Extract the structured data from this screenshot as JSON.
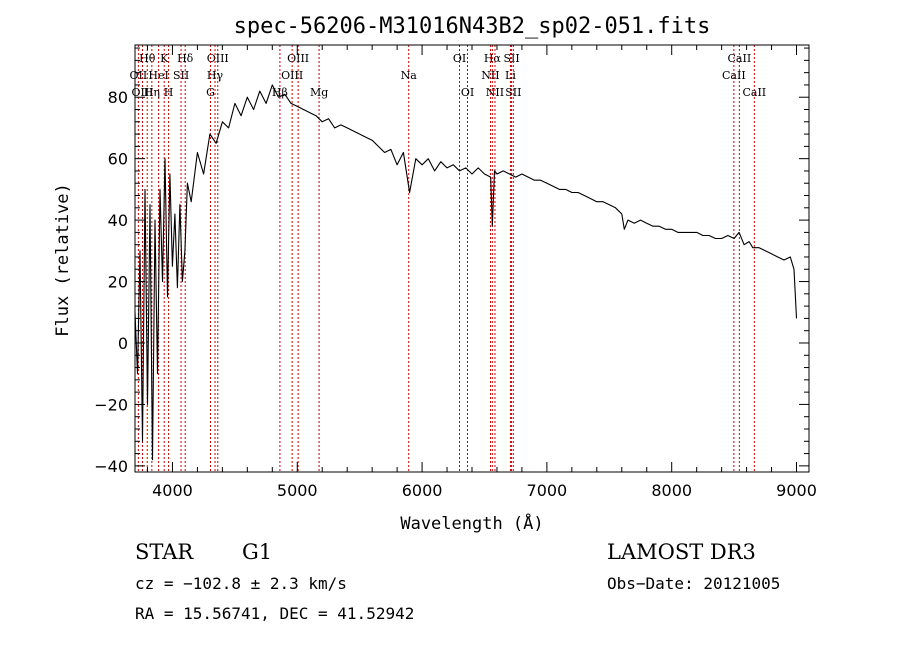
{
  "chart_data": {
    "type": "line",
    "title": "spec-56206-M31016N43B2_sp02-051.fits",
    "xlabel": "Wavelength (Å)",
    "ylabel": "Flux (relative)",
    "xlim": [
      3700,
      9100
    ],
    "ylim": [
      -42,
      97
    ],
    "xticks": [
      4000,
      5000,
      6000,
      7000,
      8000,
      9000
    ],
    "yticks": [
      -40,
      -20,
      0,
      20,
      40,
      60,
      80
    ],
    "series": [
      {
        "name": "flux",
        "x": [
          3700,
          3720,
          3740,
          3760,
          3780,
          3800,
          3820,
          3840,
          3860,
          3880,
          3900,
          3920,
          3940,
          3960,
          3980,
          4000,
          4020,
          4040,
          4060,
          4080,
          4100,
          4120,
          4150,
          4200,
          4250,
          4300,
          4350,
          4400,
          4450,
          4500,
          4550,
          4600,
          4650,
          4700,
          4750,
          4800,
          4850,
          4900,
          4950,
          5000,
          5050,
          5100,
          5150,
          5200,
          5250,
          5300,
          5350,
          5400,
          5450,
          5500,
          5550,
          5600,
          5650,
          5700,
          5750,
          5800,
          5850,
          5900,
          5950,
          6000,
          6050,
          6100,
          6150,
          6200,
          6250,
          6300,
          6350,
          6400,
          6450,
          6500,
          6550,
          6563,
          6580,
          6600,
          6650,
          6700,
          6750,
          6800,
          6850,
          6900,
          6950,
          7000,
          7050,
          7100,
          7150,
          7200,
          7250,
          7300,
          7350,
          7400,
          7450,
          7500,
          7550,
          7600,
          7620,
          7650,
          7700,
          7750,
          7800,
          7850,
          7900,
          7950,
          8000,
          8050,
          8100,
          8150,
          8200,
          8250,
          8300,
          8350,
          8400,
          8450,
          8500,
          8540,
          8580,
          8620,
          8650,
          8700,
          8750,
          8800,
          8850,
          8900,
          8950,
          8980,
          9000
        ],
        "y": [
          10,
          -10,
          30,
          -32,
          50,
          -20,
          45,
          -38,
          40,
          -10,
          50,
          20,
          60,
          15,
          55,
          25,
          42,
          18,
          45,
          20,
          30,
          52,
          46,
          62,
          55,
          68,
          65,
          72,
          70,
          78,
          74,
          80,
          76,
          82,
          78,
          84,
          80,
          81,
          78,
          77,
          76,
          75,
          74,
          72,
          73,
          70,
          71,
          70,
          69,
          68,
          67,
          66,
          64,
          62,
          63,
          58,
          62,
          49,
          60,
          58,
          60,
          56,
          59,
          57,
          58,
          56,
          57,
          55,
          57,
          55,
          54,
          38,
          56,
          55,
          56,
          55,
          54,
          55,
          54,
          53,
          53,
          52,
          51,
          50,
          50,
          49,
          49,
          48,
          47,
          46,
          46,
          45,
          44,
          42,
          37,
          40,
          39,
          40,
          39,
          38,
          38,
          37,
          37,
          36,
          36,
          36,
          36,
          35,
          35,
          34,
          34,
          35,
          34,
          36,
          32,
          33,
          31,
          31,
          30,
          29,
          28,
          27,
          28,
          24,
          8
        ]
      }
    ],
    "lines": [
      {
        "label": "Hθ",
        "wl": 3798,
        "row": 1
      },
      {
        "label": "OII",
        "wl": 3727,
        "row": 2
      },
      {
        "label": "OIII",
        "wl": 3760,
        "row": 3
      },
      {
        "label": "K",
        "wl": 3934,
        "row": 1
      },
      {
        "label": "HeI",
        "wl": 3889,
        "row": 2
      },
      {
        "label": "Hη",
        "wl": 3835,
        "row": 3
      },
      {
        "label": "Hδ",
        "wl": 4102,
        "row": 1
      },
      {
        "label": "SII",
        "wl": 4069,
        "row": 2
      },
      {
        "label": "H",
        "wl": 3969,
        "row": 3
      },
      {
        "label": "OIII",
        "wl": 4363,
        "row": 1
      },
      {
        "label": "Hγ",
        "wl": 4341,
        "row": 2
      },
      {
        "label": "G",
        "wl": 4305,
        "row": 3
      },
      {
        "label": "OIII",
        "wl": 5007,
        "row": 1
      },
      {
        "label": "OIII",
        "wl": 4959,
        "row": 2
      },
      {
        "label": "Hβ",
        "wl": 4861,
        "row": 3
      },
      {
        "label": "Mg",
        "wl": 5175,
        "row": 3
      },
      {
        "label": "Na",
        "wl": 5893,
        "row": 2
      },
      {
        "label": "OI",
        "wl": 6300,
        "row": 1
      },
      {
        "label": "OI",
        "wl": 6364,
        "row": 3
      },
      {
        "label": "Hα",
        "wl": 6563,
        "row": 1
      },
      {
        "label": "NII",
        "wl": 6548,
        "row": 2
      },
      {
        "label": "NII",
        "wl": 6584,
        "row": 3
      },
      {
        "label": "SII",
        "wl": 6717,
        "row": 1
      },
      {
        "label": "Li",
        "wl": 6708,
        "row": 2
      },
      {
        "label": "SII",
        "wl": 6731,
        "row": 3
      },
      {
        "label": "CaII",
        "wl": 8542,
        "row": 1
      },
      {
        "label": "CaII",
        "wl": 8498,
        "row": 2
      },
      {
        "label": "CaII",
        "wl": 8662,
        "row": 3
      }
    ]
  },
  "footer": {
    "object_class": "STAR",
    "subclass": "G1",
    "survey": "LAMOST DR3",
    "cz": "cz = −102.8 ± 2.3 km/s",
    "obs_date": "Obs−Date: 20121005",
    "coords": "RA =  15.56741, DEC =  41.52942"
  },
  "colors": {
    "spectrum": "#000000",
    "line_markers": "#cc0000",
    "axes": "#000000",
    "background": "#ffffff"
  }
}
